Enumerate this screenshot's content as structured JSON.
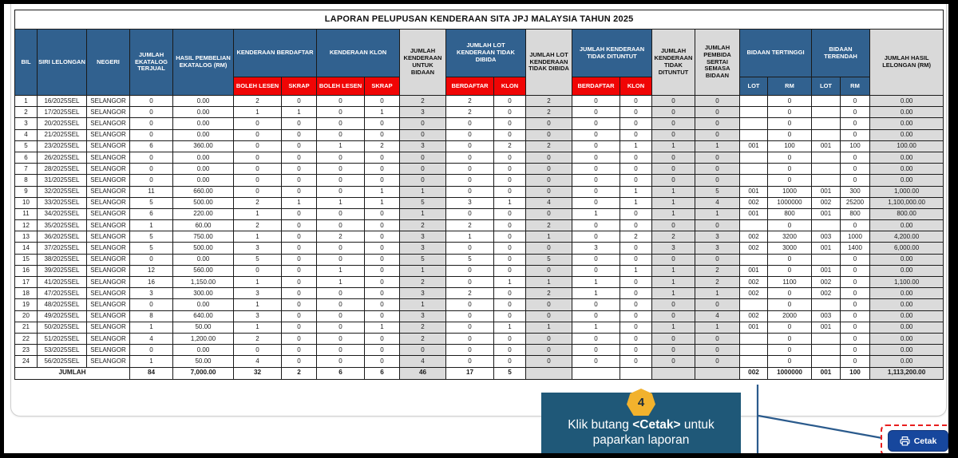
{
  "title": "LAPORAN PELUPUSAN KENDERAAN SITA JPJ MALAYSIA TAHUN 2025",
  "columns": {
    "bil": "BIL",
    "siri_lelongan": "SIRI LELONGAN",
    "negeri": "NEGERI",
    "jumlah_ekatalog_terjual": "JUMLAH EKATALOG TERJUAL",
    "hasil_pembelian_ekatalog": "HASIL PEMBELIAN EKATALOG (RM)",
    "kenderaan_berdaftar": "KENDERAAN BERDAFTAR",
    "kenderaan_klon": "KENDERAAN KLON",
    "jumlah_kenderaan_untuk_bidaan": "JUMLAH KENDERAAN UNTUK BIDAAN",
    "jumlah_lot_tidak_dibida_group": "JUMLAH LOT KENDERAAN TIDAK DIBIDA",
    "jumlah_lot_tidak_dibida": "JUMLAH LOT KENDERAAN TIDAK DIBIDA",
    "jumlah_tidak_dituntut_group": "JUMLAH KENDERAAN TIDAK DITUNTUT",
    "jumlah_tidak_dituntut": "JUMLAH KENDERAAN TIDAK DITUNTUT",
    "jumlah_pembida": "JUMLAH PEMBIDA SERTAI SEMASA BIDAAN",
    "bidaan_tertinggi": "BIDAAN TERTINGGI",
    "bidaan_terendah": "BIDAAN TERENDAH",
    "jumlah_hasil_lelongan": "JUMLAH HASIL LELONGAN (RM)",
    "boleh_lesen": "BOLEH LESEN",
    "skrap": "SKRAP",
    "berdaftar": "BERDAFTAR",
    "klon": "KLON",
    "lot": "LOT",
    "rm": "RM"
  },
  "rows": [
    [
      "1",
      "16/2025SEL",
      "SELANGOR",
      "0",
      "0.00",
      "2",
      "0",
      "0",
      "0",
      "2",
      "2",
      "0",
      "2",
      "0",
      "0",
      "0",
      "0",
      "",
      "0",
      "",
      "0",
      "0.00"
    ],
    [
      "2",
      "17/2025SEL",
      "SELANGOR",
      "0",
      "0.00",
      "1",
      "1",
      "0",
      "1",
      "3",
      "2",
      "0",
      "2",
      "0",
      "0",
      "0",
      "0",
      "",
      "0",
      "",
      "0",
      "0.00"
    ],
    [
      "3",
      "20/2025SEL",
      "SELANGOR",
      "0",
      "0.00",
      "0",
      "0",
      "0",
      "0",
      "0",
      "0",
      "0",
      "0",
      "0",
      "0",
      "0",
      "0",
      "",
      "0",
      "",
      "0",
      "0.00"
    ],
    [
      "4",
      "21/2025SEL",
      "SELANGOR",
      "0",
      "0.00",
      "0",
      "0",
      "0",
      "0",
      "0",
      "0",
      "0",
      "0",
      "0",
      "0",
      "0",
      "0",
      "",
      "0",
      "",
      "0",
      "0.00"
    ],
    [
      "5",
      "23/2025SEL",
      "SELANGOR",
      "6",
      "360.00",
      "0",
      "0",
      "1",
      "2",
      "3",
      "0",
      "2",
      "2",
      "0",
      "1",
      "1",
      "1",
      "001",
      "100",
      "001",
      "100",
      "100.00"
    ],
    [
      "6",
      "26/2025SEL",
      "SELANGOR",
      "0",
      "0.00",
      "0",
      "0",
      "0",
      "0",
      "0",
      "0",
      "0",
      "0",
      "0",
      "0",
      "0",
      "0",
      "",
      "0",
      "",
      "0",
      "0.00"
    ],
    [
      "7",
      "28/2025SEL",
      "SELANGOR",
      "0",
      "0.00",
      "0",
      "0",
      "0",
      "0",
      "0",
      "0",
      "0",
      "0",
      "0",
      "0",
      "0",
      "0",
      "",
      "0",
      "",
      "0",
      "0.00"
    ],
    [
      "8",
      "31/2025SEL",
      "SELANGOR",
      "0",
      "0.00",
      "0",
      "0",
      "0",
      "0",
      "0",
      "0",
      "0",
      "0",
      "0",
      "0",
      "0",
      "0",
      "",
      "0",
      "",
      "0",
      "0.00"
    ],
    [
      "9",
      "32/2025SEL",
      "SELANGOR",
      "11",
      "660.00",
      "0",
      "0",
      "0",
      "1",
      "1",
      "0",
      "0",
      "0",
      "0",
      "1",
      "1",
      "5",
      "001",
      "1000",
      "001",
      "300",
      "1,000.00"
    ],
    [
      "10",
      "33/2025SEL",
      "SELANGOR",
      "5",
      "500.00",
      "2",
      "1",
      "1",
      "1",
      "5",
      "3",
      "1",
      "4",
      "0",
      "1",
      "1",
      "4",
      "002",
      "1000000",
      "002",
      "25200",
      "1,100,000.00"
    ],
    [
      "11",
      "34/2025SEL",
      "SELANGOR",
      "6",
      "220.00",
      "1",
      "0",
      "0",
      "0",
      "1",
      "0",
      "0",
      "0",
      "1",
      "0",
      "1",
      "1",
      "001",
      "800",
      "001",
      "800",
      "800.00"
    ],
    [
      "12",
      "35/2025SEL",
      "SELANGOR",
      "1",
      "60.00",
      "2",
      "0",
      "0",
      "0",
      "2",
      "2",
      "0",
      "2",
      "0",
      "0",
      "0",
      "0",
      "",
      "0",
      "",
      "0",
      "0.00"
    ],
    [
      "13",
      "36/2025SEL",
      "SELANGOR",
      "5",
      "750.00",
      "1",
      "0",
      "2",
      "0",
      "3",
      "1",
      "0",
      "1",
      "0",
      "2",
      "2",
      "3",
      "002",
      "3200",
      "003",
      "1000",
      "4,200.00"
    ],
    [
      "14",
      "37/2025SEL",
      "SELANGOR",
      "5",
      "500.00",
      "3",
      "0",
      "0",
      "0",
      "3",
      "0",
      "0",
      "0",
      "3",
      "0",
      "3",
      "3",
      "002",
      "3000",
      "001",
      "1400",
      "6,000.00"
    ],
    [
      "15",
      "38/2025SEL",
      "SELANGOR",
      "0",
      "0.00",
      "5",
      "0",
      "0",
      "0",
      "5",
      "5",
      "0",
      "5",
      "0",
      "0",
      "0",
      "0",
      "",
      "0",
      "",
      "0",
      "0.00"
    ],
    [
      "16",
      "39/2025SEL",
      "SELANGOR",
      "12",
      "560.00",
      "0",
      "0",
      "1",
      "0",
      "1",
      "0",
      "0",
      "0",
      "0",
      "1",
      "1",
      "2",
      "001",
      "0",
      "001",
      "0",
      "0.00"
    ],
    [
      "17",
      "41/2025SEL",
      "SELANGOR",
      "16",
      "1,150.00",
      "1",
      "0",
      "1",
      "0",
      "2",
      "0",
      "1",
      "1",
      "1",
      "0",
      "1",
      "2",
      "002",
      "1100",
      "002",
      "0",
      "1,100.00"
    ],
    [
      "18",
      "47/2025SEL",
      "SELANGOR",
      "3",
      "300.00",
      "3",
      "0",
      "0",
      "0",
      "3",
      "2",
      "0",
      "2",
      "1",
      "0",
      "1",
      "1",
      "002",
      "0",
      "002",
      "0",
      "0.00"
    ],
    [
      "19",
      "48/2025SEL",
      "SELANGOR",
      "0",
      "0.00",
      "1",
      "0",
      "0",
      "0",
      "1",
      "0",
      "0",
      "0",
      "0",
      "0",
      "0",
      "0",
      "",
      "0",
      "",
      "0",
      "0.00"
    ],
    [
      "20",
      "49/2025SEL",
      "SELANGOR",
      "8",
      "640.00",
      "3",
      "0",
      "0",
      "0",
      "3",
      "0",
      "0",
      "0",
      "0",
      "0",
      "0",
      "4",
      "002",
      "2000",
      "003",
      "0",
      "0.00"
    ],
    [
      "21",
      "50/2025SEL",
      "SELANGOR",
      "1",
      "50.00",
      "1",
      "0",
      "0",
      "1",
      "2",
      "0",
      "1",
      "1",
      "1",
      "0",
      "1",
      "1",
      "001",
      "0",
      "001",
      "0",
      "0.00"
    ],
    [
      "22",
      "51/2025SEL",
      "SELANGOR",
      "4",
      "1,200.00",
      "2",
      "0",
      "0",
      "0",
      "2",
      "0",
      "0",
      "0",
      "0",
      "0",
      "0",
      "0",
      "",
      "0",
      "",
      "0",
      "0.00"
    ],
    [
      "23",
      "53/2025SEL",
      "SELANGOR",
      "0",
      "0.00",
      "0",
      "0",
      "0",
      "0",
      "0",
      "0",
      "0",
      "0",
      "0",
      "0",
      "0",
      "0",
      "",
      "0",
      "",
      "0",
      "0.00"
    ],
    [
      "24",
      "56/2025SEL",
      "SELANGOR",
      "1",
      "50.00",
      "4",
      "0",
      "0",
      "0",
      "4",
      "0",
      "0",
      "0",
      "0",
      "0",
      "0",
      "0",
      "",
      "0",
      "",
      "0",
      "0.00"
    ]
  ],
  "total_row": {
    "label": "JUMLAH",
    "values": [
      "84",
      "7,000.00",
      "32",
      "2",
      "6",
      "6",
      "46",
      "17",
      "5",
      "",
      "",
      "",
      "",
      "",
      "002",
      "1000000",
      "001",
      "100",
      "1,113,200.00"
    ]
  },
  "callout": {
    "step": "4",
    "line1_pre": "Klik butang ",
    "line1_bold": "<Cetak>",
    "line1_post": " untuk",
    "line2": "paparkan laporan"
  },
  "print_button": {
    "label": "Cetak",
    "icon": "printer-icon"
  },
  "colors": {
    "header_blue": "#31618F",
    "header_red": "#F00505",
    "header_gray": "#D9D9D9",
    "row_gray": "#DBDBDB",
    "callout_bg": "#1F5878",
    "badge_gold": "#F2B22D",
    "button_blue": "#17479D",
    "highlight_red": "#E81E1E",
    "line_blue": "#2A5A8C"
  }
}
